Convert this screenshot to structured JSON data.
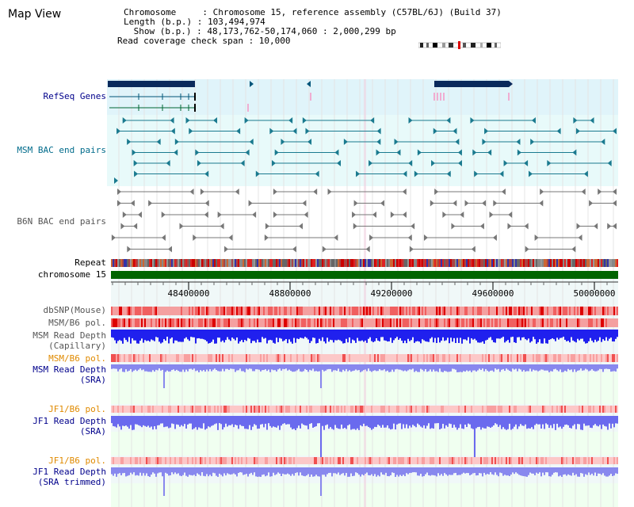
{
  "header": {
    "title": "Map View",
    "chromosome_line": "Chromosome     : Chromosome 15, reference assembly (C57BL/6J) (Build 37)",
    "length_line": "Length (b.p.) : 103,494,974",
    "show_line": " Show (b.p.) : 48,173,762-50,174,060 : 2,000,299 bp",
    "coverage_line": "Read coverage check span : 10,000"
  },
  "tracks": {
    "refseq": "RefSeq Genes",
    "msm_bac": "MSM BAC end pairs",
    "b6n_bac": "B6N BAC end pairs",
    "repeat": "Repeat",
    "chromosome": "chromosome 15",
    "dbsnp": "dbSNP(Mouse)",
    "msm_b6_pol": "MSM/B6 pol.",
    "msm_rd_cap_1": "MSM Read Depth",
    "msm_rd_cap_2": "(Capillary)",
    "msm_b6_pol_2": "MSM/B6 pol.",
    "msm_rd_sra_1": "MSM Read Depth",
    "msm_rd_sra_2": "(SRA)",
    "jf1_b6_pol_1": "JF1/B6 pol.",
    "jf1_rd_sra_1": "JF1 Read Depth",
    "jf1_rd_sra_2": "(SRA)",
    "jf1_b6_pol_2": "JF1/B6 pol.",
    "jf1_rd_trim_1": "JF1 Read Depth",
    "jf1_rd_trim_2": "(SRA trimmed)"
  },
  "ruler": {
    "ticks": [
      "48400000",
      "48800000",
      "49200000",
      "49600000",
      "50000000"
    ]
  },
  "colors": {
    "refseq_bg": "#e0f4fa",
    "msm_bg": "#e8fafa",
    "navy_gene": "#0a2a5c",
    "chrom_green": "#006400",
    "depth_blue": "#2020ee",
    "light_blue": "#8888ee",
    "pol_red": "#e83030"
  }
}
